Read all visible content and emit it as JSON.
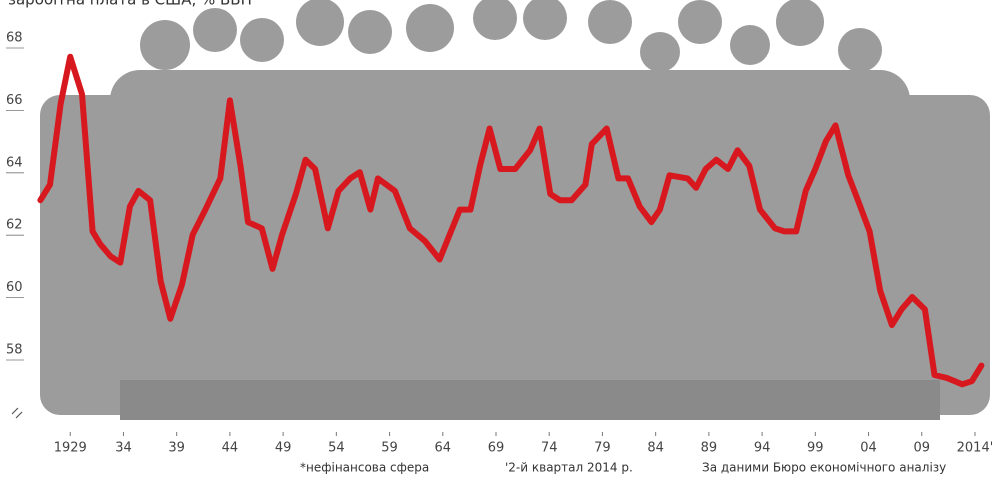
{
  "chart_data": {
    "type": "line",
    "title": "заробітна плата в США, % ВВП",
    "notes": [
      "*нефінансова сфера",
      "'2-й квартал 2014 р.",
      "За даними Бюро економічного аналізу"
    ],
    "x": [
      1926.2,
      1927.1,
      1928.1,
      1929,
      1930.1,
      1931.1,
      1931.8,
      1932.8,
      1933.7,
      1934.6,
      1935.4,
      1936.5,
      1937.5,
      1938.4,
      1939.5,
      1940.5,
      1941.7,
      1943.1,
      1944.0,
      1945.0,
      1945.7,
      1947.0,
      1948.0,
      1948.9,
      1950.2,
      1951.1,
      1952.0,
      1953.2,
      1954.2,
      1955.3,
      1956.2,
      1957.2,
      1957.9,
      1959.5,
      1960.9,
      1962.3,
      1963.7,
      1965.6,
      1966.6,
      1967.5,
      1968.4,
      1969.4,
      1970.8,
      1972.2,
      1973.1,
      1974.1,
      1975.0,
      1976.1,
      1977.4,
      1978.0,
      1979.4,
      1980.5,
      1981.4,
      1982.5,
      1983.6,
      1984.4,
      1985.3,
      1987.0,
      1987.8,
      1988.7,
      1989.7,
      1990.8,
      1991.7,
      1992.8,
      1993.8,
      1995.2,
      1996.1,
      1997.2,
      1998.1,
      1999.0,
      2000.0,
      2000.9,
      2002.1,
      2003.0,
      2004.1,
      2005.1,
      2006.2,
      2007.1,
      2008.1,
      2009.3,
      2010.2,
      2011.4,
      2012.8,
      2013.7,
      2014.6
    ],
    "series": [
      {
        "color": "#d7191f",
        "values": [
          62.8,
          63.3,
          65.9,
          67.4,
          66.2,
          61.8,
          61.4,
          61.0,
          60.8,
          62.6,
          63.1,
          62.8,
          60.2,
          59.0,
          60.1,
          61.7,
          62.5,
          63.5,
          66.0,
          63.9,
          62.1,
          61.9,
          60.6,
          61.7,
          63.0,
          64.1,
          63.8,
          61.9,
          63.1,
          63.5,
          63.7,
          62.5,
          63.5,
          63.1,
          61.9,
          61.5,
          60.9,
          62.5,
          62.5,
          63.9,
          65.1,
          63.8,
          63.8,
          64.4,
          65.1,
          63.0,
          62.8,
          62.8,
          63.3,
          64.6,
          65.1,
          63.5,
          63.5,
          62.6,
          62.1,
          62.5,
          63.6,
          63.5,
          63.2,
          63.8,
          64.1,
          63.8,
          64.4,
          63.9,
          62.5,
          61.9,
          61.8,
          61.8,
          63.1,
          63.8,
          64.7,
          65.2,
          63.6,
          62.8,
          61.8,
          59.9,
          58.8,
          59.3,
          59.7,
          59.3,
          57.2,
          57.1,
          56.9,
          57.0,
          57.5
        ]
      }
    ],
    "xlim": [
      1922.4,
      2015.6
    ],
    "ylim": [
      56,
      68.5
    ],
    "xticks": [
      {
        "value": 1929,
        "label": "1929"
      },
      {
        "value": 1934,
        "label": "34"
      },
      {
        "value": 1939,
        "label": "39"
      },
      {
        "value": 1944,
        "label": "44"
      },
      {
        "value": 1949,
        "label": "49"
      },
      {
        "value": 1954,
        "label": "54"
      },
      {
        "value": 1959,
        "label": "59"
      },
      {
        "value": 1964,
        "label": "64"
      },
      {
        "value": 1969,
        "label": "69"
      },
      {
        "value": 1974,
        "label": "74"
      },
      {
        "value": 1979,
        "label": "79"
      },
      {
        "value": 1984,
        "label": "84"
      },
      {
        "value": 1989,
        "label": "89"
      },
      {
        "value": 1994,
        "label": "94"
      },
      {
        "value": 1999,
        "label": "99"
      },
      {
        "value": 2004,
        "label": "04"
      },
      {
        "value": 2009,
        "label": "09"
      },
      {
        "value": 2014,
        "label": "2014'"
      }
    ],
    "yticks": [
      58,
      60,
      62,
      64,
      66,
      68
    ]
  }
}
